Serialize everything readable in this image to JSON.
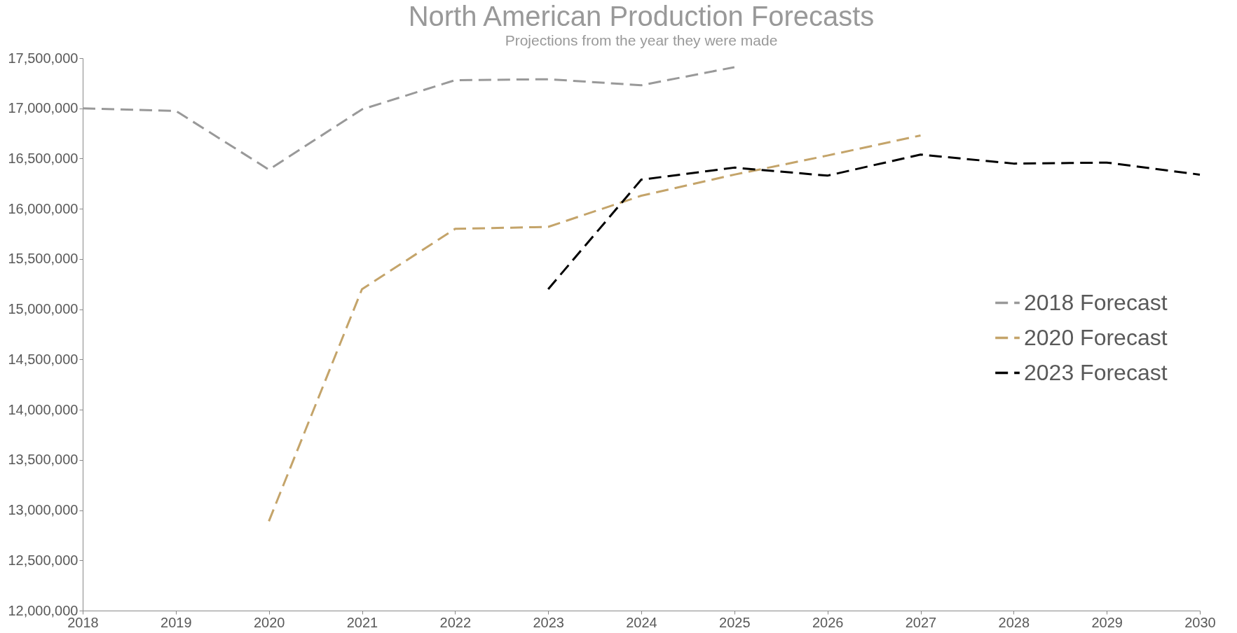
{
  "chart_data": {
    "type": "line",
    "title": "North American Production Forecasts",
    "subtitle": "Projections from the year they were made",
    "xlim": [
      2018,
      2030
    ],
    "xticks": [
      2018,
      2019,
      2020,
      2021,
      2022,
      2023,
      2024,
      2025,
      2026,
      2027,
      2028,
      2029,
      2030
    ],
    "ylim": [
      12000000,
      17500000
    ],
    "yticks": [
      {
        "value": 12000000,
        "label": "12,000,000"
      },
      {
        "value": 12500000,
        "label": "12,500,000"
      },
      {
        "value": 13000000,
        "label": "13,000,000"
      },
      {
        "value": 13500000,
        "label": "13,500,000"
      },
      {
        "value": 14000000,
        "label": "14,000,000"
      },
      {
        "value": 14500000,
        "label": "14,500,000"
      },
      {
        "value": 15000000,
        "label": "15,000,000"
      },
      {
        "value": 15500000,
        "label": "15,500,000"
      },
      {
        "value": 16000000,
        "label": "16,000,000"
      },
      {
        "value": 16500000,
        "label": "16,500,000"
      },
      {
        "value": 17000000,
        "label": "17,000,000"
      },
      {
        "value": 17500000,
        "label": "17,500,000"
      }
    ],
    "grid": false,
    "legend": "right",
    "line_style": "dashed",
    "marker": "none",
    "series": [
      {
        "name": "2018 Forecast",
        "color": "#999999",
        "x": [
          2018,
          2019,
          2020,
          2021,
          2022,
          2023,
          2024,
          2025
        ],
        "values": [
          17000000,
          16975000,
          16390000,
          16990000,
          17280000,
          17290000,
          17230000,
          17410000
        ]
      },
      {
        "name": "2020 Forecast",
        "color": "#c4a46a",
        "x": [
          2020,
          2021,
          2022,
          2023,
          2024,
          2025,
          2026,
          2027
        ],
        "values": [
          12890000,
          15200000,
          15800000,
          15820000,
          16130000,
          16340000,
          16530000,
          16730000
        ]
      },
      {
        "name": "2023 Forecast",
        "color": "#000000",
        "x": [
          2023,
          2024,
          2025,
          2026,
          2027,
          2028,
          2029,
          2030
        ],
        "values": [
          15200000,
          16290000,
          16410000,
          16330000,
          16540000,
          16450000,
          16460000,
          16340000
        ]
      }
    ]
  }
}
